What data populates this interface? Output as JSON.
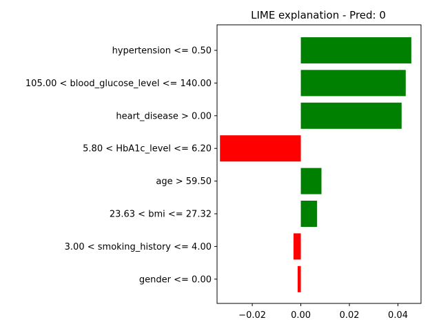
{
  "chart_data": {
    "type": "bar",
    "orientation": "horizontal",
    "title": "LIME explanation - Pred: 0",
    "xlabel": "",
    "ylabel": "",
    "grid": false,
    "xlim": [
      -0.0345,
      0.0495
    ],
    "x_ticks": [
      -0.02,
      0.0,
      0.02,
      0.04
    ],
    "x_tick_labels": [
      "−0.02",
      "0.00",
      "0.02",
      "0.04"
    ],
    "categories": [
      "hypertension <= 0.50",
      "105.00 < blood_glucose_level <= 140.00",
      "heart_disease > 0.00",
      "5.80 < HbA1c_level <= 6.20",
      "age > 59.50",
      "23.63 < bmi <= 27.32",
      "3.00 < smoking_history <= 4.00",
      "gender <= 0.00"
    ],
    "values": [
      0.0455,
      0.0432,
      0.0415,
      -0.0333,
      0.0085,
      0.0067,
      -0.003,
      -0.0013
    ],
    "colors": {
      "positive": "#008000",
      "negative": "#ff0000"
    }
  }
}
